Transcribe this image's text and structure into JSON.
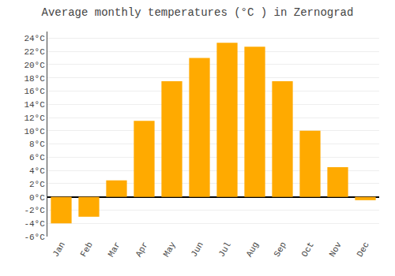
{
  "chart_data": {
    "type": "bar",
    "title": "Average monthly temperatures (°C ) in Zernograd",
    "categories": [
      "Jan",
      "Feb",
      "Mar",
      "Apr",
      "May",
      "Jun",
      "Jul",
      "Aug",
      "Sep",
      "Oct",
      "Nov",
      "Dec"
    ],
    "values": [
      -4.0,
      -3.0,
      2.5,
      11.5,
      17.5,
      21.0,
      23.3,
      22.7,
      17.5,
      10.0,
      4.5,
      -0.5
    ],
    "color": "#FFAA00",
    "ylim": [
      -6,
      25
    ],
    "yticks": [
      {
        "value": -6,
        "label": "-6°C"
      },
      {
        "value": -4,
        "label": "-4°C"
      },
      {
        "value": -2,
        "label": "-2°C"
      },
      {
        "value": 0,
        "label": "0°C"
      },
      {
        "value": 2,
        "label": "2°C"
      },
      {
        "value": 4,
        "label": "4°C"
      },
      {
        "value": 6,
        "label": "6°C"
      },
      {
        "value": 8,
        "label": "8°C"
      },
      {
        "value": 10,
        "label": "10°C"
      },
      {
        "value": 12,
        "label": "12°C"
      },
      {
        "value": 14,
        "label": "14°C"
      },
      {
        "value": 16,
        "label": "16°C"
      },
      {
        "value": 18,
        "label": "18°C"
      },
      {
        "value": 20,
        "label": "20°C"
      },
      {
        "value": 22,
        "label": "22°C"
      },
      {
        "value": 24,
        "label": "24°C"
      }
    ],
    "grid": true
  }
}
